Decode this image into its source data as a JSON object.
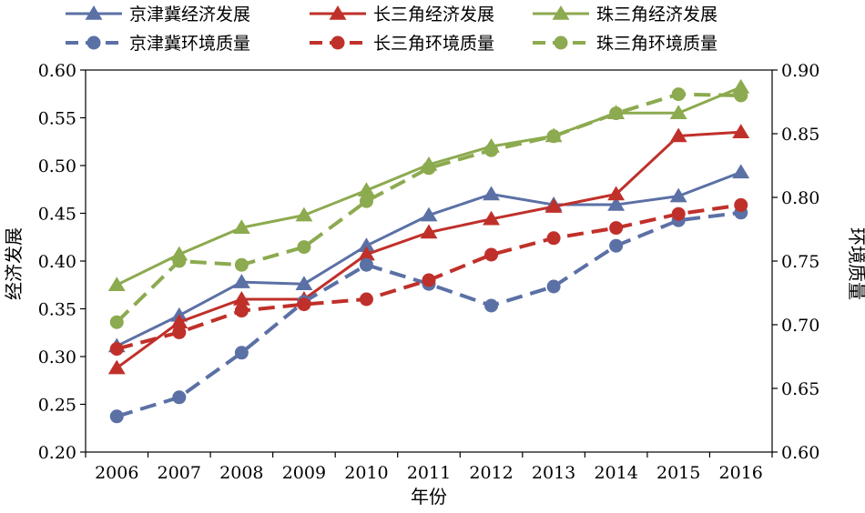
{
  "chart_data": {
    "type": "line",
    "xlabel": "年份",
    "ylabel_left": "经济发展",
    "ylabel_right": "环境质量",
    "categories": [
      "2006",
      "2007",
      "2008",
      "2009",
      "2010",
      "2011",
      "2012",
      "2013",
      "2014",
      "2015",
      "2016"
    ],
    "y_left": {
      "min": 0.2,
      "max": 0.6,
      "ticks": [
        "0.20",
        "0.25",
        "0.30",
        "0.35",
        "0.40",
        "0.45",
        "0.50",
        "0.55",
        "0.60"
      ]
    },
    "y_right": {
      "min": 0.6,
      "max": 0.9,
      "ticks": [
        "0.60",
        "0.65",
        "0.70",
        "0.75",
        "0.80",
        "0.85",
        "0.90"
      ]
    },
    "grid": false,
    "legend_position": "top",
    "series": [
      {
        "name": "京津冀经济发展",
        "axis": "left",
        "style": "solid",
        "marker": "triangle",
        "color": "#5b70a5",
        "values": [
          0.311,
          0.343,
          0.378,
          0.376,
          0.416,
          0.448,
          0.47,
          0.459,
          0.459,
          0.468,
          0.493
        ]
      },
      {
        "name": "长三角经济发展",
        "axis": "left",
        "style": "solid",
        "marker": "triangle",
        "color": "#c0302a",
        "values": [
          0.288,
          0.336,
          0.36,
          0.36,
          0.407,
          0.43,
          0.444,
          0.457,
          0.47,
          0.531,
          0.535
        ]
      },
      {
        "name": "珠三角经济发展",
        "axis": "left",
        "style": "solid",
        "marker": "triangle",
        "color": "#8caa4f",
        "values": [
          0.375,
          0.407,
          0.435,
          0.448,
          0.474,
          0.501,
          0.52,
          0.531,
          0.555,
          0.555,
          0.582
        ]
      },
      {
        "name": "京津冀环境质量",
        "axis": "right",
        "style": "dashed",
        "marker": "circle",
        "color": "#5b70a5",
        "values": [
          0.628,
          0.643,
          0.678,
          0.718,
          0.747,
          0.732,
          0.715,
          0.73,
          0.762,
          0.782,
          0.788
        ]
      },
      {
        "name": "长三角环境质量",
        "axis": "right",
        "style": "dashed",
        "marker": "circle",
        "color": "#c0302a",
        "values": [
          0.681,
          0.694,
          0.711,
          0.716,
          0.72,
          0.735,
          0.755,
          0.768,
          0.776,
          0.787,
          0.794
        ]
      },
      {
        "name": "珠三角环境质量",
        "axis": "right",
        "style": "dashed",
        "marker": "circle",
        "color": "#8caa4f",
        "values": [
          0.702,
          0.75,
          0.747,
          0.761,
          0.797,
          0.823,
          0.837,
          0.848,
          0.866,
          0.881,
          0.88
        ]
      }
    ]
  }
}
